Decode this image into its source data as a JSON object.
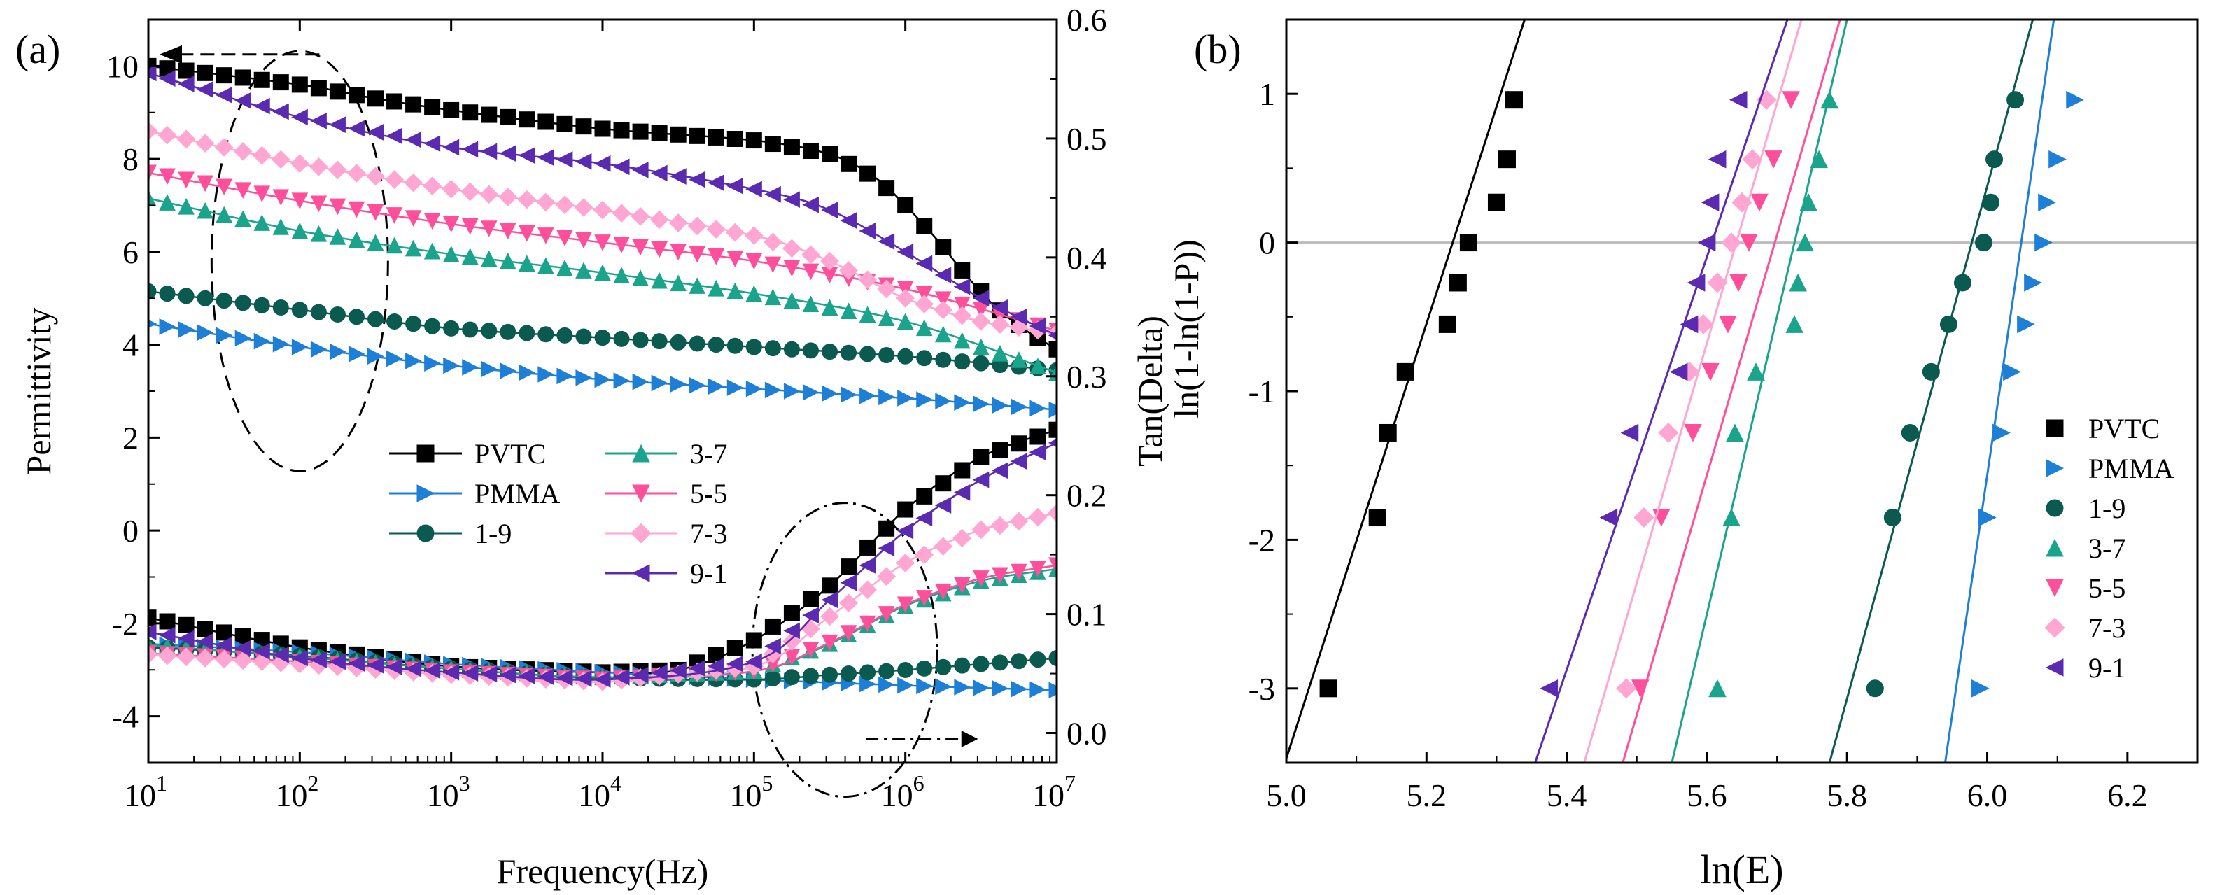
{
  "figure": {
    "panel_a_label": "(a)",
    "panel_b_label": "(b)"
  },
  "chart_data": [
    {
      "type": "line",
      "panel": "(a)",
      "xscale": "log",
      "xlabel": "Frequency(Hz)",
      "ylabel": "Permittivity",
      "ylabel_right": "Tan(Delta)",
      "xlim": [
        10,
        10000000
      ],
      "ylim": [
        -5,
        11
      ],
      "ylim_right": [
        -0.025,
        0.6
      ],
      "x_ticks": [
        {
          "value": 10,
          "base": "10",
          "exp": "1"
        },
        {
          "value": 100,
          "base": "10",
          "exp": "2"
        },
        {
          "value": 1000,
          "base": "10",
          "exp": "3"
        },
        {
          "value": 10000,
          "base": "10",
          "exp": "4"
        },
        {
          "value": 100000,
          "base": "10",
          "exp": "5"
        },
        {
          "value": 1000000,
          "base": "10",
          "exp": "6"
        },
        {
          "value": 10000000,
          "base": "10",
          "exp": "7"
        }
      ],
      "y_ticks": [
        {
          "value": -4,
          "label": "-4"
        },
        {
          "value": -2,
          "label": "-2"
        },
        {
          "value": 0,
          "label": "0"
        },
        {
          "value": 2,
          "label": "2"
        },
        {
          "value": 4,
          "label": "4"
        },
        {
          "value": 6,
          "label": "6"
        },
        {
          "value": 8,
          "label": "8"
        },
        {
          "value": 10,
          "label": "10"
        }
      ],
      "y_ticks_right": [
        {
          "value": 0.0,
          "label": "0.0"
        },
        {
          "value": 0.1,
          "label": "0.1"
        },
        {
          "value": 0.2,
          "label": "0.2"
        },
        {
          "value": 0.3,
          "label": "0.3"
        },
        {
          "value": 0.4,
          "label": "0.4"
        },
        {
          "value": 0.5,
          "label": "0.5"
        },
        {
          "value": 0.6,
          "label": "0.6"
        }
      ],
      "legend_position": "center",
      "annotations": [
        "dashed ellipse around permittivity curves near 10^2 Hz with arrow pointing to left axis",
        "dash-dot ellipse around tan delta curves near 10^5.6 Hz with arrow pointing to right axis"
      ],
      "series": [
        {
          "name": "PVTC",
          "marker": "square",
          "color": "#000000",
          "axis": "left",
          "role": "permittivity",
          "points": [
            [
              1,
              10.0
            ],
            [
              2,
              9.6
            ],
            [
              2.5,
              9.3
            ],
            [
              3,
              9.05
            ],
            [
              4,
              8.65
            ],
            [
              5,
              8.4
            ],
            [
              5.5,
              8.1
            ],
            [
              5.8,
              7.6
            ],
            [
              6.0,
              7.0
            ],
            [
              6.2,
              6.3
            ],
            [
              6.4,
              5.5
            ],
            [
              6.6,
              4.8
            ],
            [
              6.8,
              4.3
            ],
            [
              7,
              3.9
            ]
          ]
        },
        {
          "name": "PMMA",
          "marker": "triangle-right",
          "color": "#1e7fd6",
          "axis": "left",
          "role": "permittivity",
          "points": [
            [
              1,
              4.45
            ],
            [
              2,
              3.95
            ],
            [
              3,
              3.55
            ],
            [
              4,
              3.25
            ],
            [
              5,
              3.05
            ],
            [
              6,
              2.85
            ],
            [
              7,
              2.6
            ]
          ]
        },
        {
          "name": "1-9",
          "marker": "circle",
          "color": "#0a5a50",
          "axis": "left",
          "role": "permittivity",
          "points": [
            [
              1,
              5.15
            ],
            [
              2,
              4.75
            ],
            [
              3,
              4.35
            ],
            [
              4,
              4.15
            ],
            [
              5,
              3.95
            ],
            [
              6,
              3.75
            ],
            [
              7,
              3.45
            ]
          ]
        },
        {
          "name": "3-7",
          "marker": "triangle-up",
          "color": "#1aa48c",
          "axis": "left",
          "role": "permittivity",
          "points": [
            [
              1,
              7.15
            ],
            [
              2,
              6.45
            ],
            [
              3,
              5.95
            ],
            [
              4,
              5.55
            ],
            [
              5,
              5.1
            ],
            [
              6,
              4.5
            ],
            [
              7,
              3.4
            ]
          ]
        },
        {
          "name": "5-5",
          "marker": "triangle-down",
          "color": "#ff4f9a",
          "axis": "left",
          "role": "permittivity",
          "points": [
            [
              1,
              7.7
            ],
            [
              2,
              7.1
            ],
            [
              3,
              6.6
            ],
            [
              4,
              6.2
            ],
            [
              5,
              5.8
            ],
            [
              6,
              5.2
            ],
            [
              7,
              4.3
            ]
          ]
        },
        {
          "name": "7-3",
          "marker": "diamond",
          "color": "#ffa6d2",
          "axis": "left",
          "role": "permittivity",
          "points": [
            [
              1,
              8.6
            ],
            [
              2,
              7.9
            ],
            [
              3,
              7.35
            ],
            [
              4,
              6.9
            ],
            [
              5,
              6.35
            ],
            [
              5.5,
              5.8
            ],
            [
              6,
              5.0
            ],
            [
              6.5,
              4.5
            ],
            [
              7,
              4.25
            ]
          ]
        },
        {
          "name": "9-1",
          "marker": "triangle-left",
          "color": "#5a2bb0",
          "axis": "left",
          "role": "permittivity",
          "points": [
            [
              1,
              9.85
            ],
            [
              2,
              8.9
            ],
            [
              3,
              8.25
            ],
            [
              4,
              7.9
            ],
            [
              5,
              7.35
            ],
            [
              5.5,
              6.9
            ],
            [
              6,
              6.0
            ],
            [
              6.5,
              5.0
            ],
            [
              7,
              4.2
            ]
          ]
        },
        {
          "name": "PVTC",
          "marker": "square",
          "color": "#000000",
          "axis": "right",
          "role": "tan-delta",
          "points": [
            [
              1,
              0.097
            ],
            [
              2,
              0.072
            ],
            [
              3,
              0.056
            ],
            [
              4,
              0.051
            ],
            [
              4.5,
              0.053
            ],
            [
              5,
              0.078
            ],
            [
              5.5,
              0.124
            ],
            [
              6,
              0.188
            ],
            [
              6.5,
              0.232
            ],
            [
              7,
              0.255
            ]
          ]
        },
        {
          "name": "PMMA",
          "marker": "triangle-right",
          "color": "#1e7fd6",
          "axis": "right",
          "role": "tan-delta",
          "points": [
            [
              1,
              0.075
            ],
            [
              2,
              0.068
            ],
            [
              3,
              0.058
            ],
            [
              4,
              0.051
            ],
            [
              5,
              0.045
            ],
            [
              6,
              0.04
            ],
            [
              7,
              0.036
            ]
          ]
        },
        {
          "name": "1-9",
          "marker": "circle",
          "color": "#0a5a50",
          "axis": "right",
          "role": "tan-delta",
          "points": [
            [
              1,
              0.072
            ],
            [
              2,
              0.065
            ],
            [
              3,
              0.054
            ],
            [
              4,
              0.046
            ],
            [
              5,
              0.045
            ],
            [
              5.5,
              0.049
            ],
            [
              6,
              0.053
            ],
            [
              6.5,
              0.058
            ],
            [
              7,
              0.063
            ]
          ]
        },
        {
          "name": "3-7",
          "marker": "triangle-up",
          "color": "#1aa48c",
          "axis": "right",
          "role": "tan-delta",
          "points": [
            [
              1,
              0.074
            ],
            [
              2,
              0.064
            ],
            [
              3,
              0.054
            ],
            [
              4,
              0.047
            ],
            [
              5,
              0.052
            ],
            [
              5.5,
              0.075
            ],
            [
              6,
              0.107
            ],
            [
              6.5,
              0.128
            ],
            [
              7,
              0.138
            ]
          ]
        },
        {
          "name": "5-5",
          "marker": "triangle-down",
          "color": "#ff4f9a",
          "axis": "right",
          "role": "tan-delta",
          "points": [
            [
              1,
              0.067
            ],
            [
              2,
              0.06
            ],
            [
              3,
              0.051
            ],
            [
              4,
              0.045
            ],
            [
              5,
              0.052
            ],
            [
              5.5,
              0.076
            ],
            [
              6,
              0.108
            ],
            [
              6.5,
              0.13
            ],
            [
              7,
              0.141
            ]
          ]
        },
        {
          "name": "7-3",
          "marker": "diamond",
          "color": "#ffa6d2",
          "axis": "right",
          "role": "tan-delta",
          "points": [
            [
              1,
              0.066
            ],
            [
              2,
              0.058
            ],
            [
              3,
              0.049
            ],
            [
              4,
              0.043
            ],
            [
              5,
              0.056
            ],
            [
              5.5,
              0.098
            ],
            [
              6,
              0.143
            ],
            [
              6.5,
              0.171
            ],
            [
              7,
              0.185
            ]
          ]
        },
        {
          "name": "9-1",
          "marker": "triangle-left",
          "color": "#5a2bb0",
          "axis": "right",
          "role": "tan-delta",
          "points": [
            [
              1,
              0.085
            ],
            [
              2,
              0.063
            ],
            [
              3,
              0.051
            ],
            [
              4,
              0.045
            ],
            [
              5,
              0.06
            ],
            [
              5.5,
              0.112
            ],
            [
              6,
              0.17
            ],
            [
              6.5,
              0.213
            ],
            [
              7,
              0.244
            ]
          ]
        }
      ]
    },
    {
      "type": "scatter",
      "panel": "(b)",
      "xlabel": "ln(E)",
      "ylabel": "ln(1-ln(1-P))",
      "xlim": [
        5.0,
        6.3
      ],
      "ylim": [
        -3.5,
        1.5
      ],
      "x_ticks": [
        {
          "value": 5.0,
          "label": "5.0"
        },
        {
          "value": 5.2,
          "label": "5.2"
        },
        {
          "value": 5.4,
          "label": "5.4"
        },
        {
          "value": 5.6,
          "label": "5.6"
        },
        {
          "value": 5.8,
          "label": "5.8"
        },
        {
          "value": 6.0,
          "label": "6.0"
        },
        {
          "value": 6.2,
          "label": "6.2"
        }
      ],
      "y_ticks": [
        {
          "value": -3,
          "label": "-3"
        },
        {
          "value": -2,
          "label": "-2"
        },
        {
          "value": -1,
          "label": "-1"
        },
        {
          "value": 0,
          "label": "0"
        },
        {
          "value": 1,
          "label": "1"
        }
      ],
      "reference_line_y": 0,
      "legend_position": "bottom-right",
      "y_levels": [
        -3.0,
        -1.85,
        -1.28,
        -0.87,
        -0.55,
        -0.27,
        0.0,
        0.27,
        0.56,
        0.96
      ],
      "series": [
        {
          "name": "PVTC",
          "marker": "square",
          "color": "#000000",
          "x": [
            5.06,
            5.13,
            5.145,
            5.17,
            5.23,
            5.245,
            5.26,
            5.3,
            5.315,
            5.325
          ],
          "fit": [
            [
              5.0,
              -3.47
            ],
            [
              5.34,
              1.5
            ]
          ]
        },
        {
          "name": "PMMA",
          "marker": "triangle-right",
          "color": "#1e7fd6",
          "x": [
            5.99,
            6.0,
            6.02,
            6.035,
            6.055,
            6.065,
            6.08,
            6.085,
            6.1,
            6.125
          ],
          "fit": [
            [
              5.94,
              -3.5
            ],
            [
              6.095,
              1.5
            ]
          ]
        },
        {
          "name": "1-9",
          "marker": "circle",
          "color": "#0a5a50",
          "x": [
            5.84,
            5.865,
            5.89,
            5.92,
            5.945,
            5.965,
            5.995,
            6.005,
            6.01,
            6.04
          ],
          "fit": [
            [
              5.775,
              -3.5
            ],
            [
              6.065,
              1.5
            ]
          ]
        },
        {
          "name": "3-7",
          "marker": "triangle-up",
          "color": "#1aa48c",
          "x": [
            5.615,
            5.635,
            5.64,
            5.67,
            5.725,
            5.73,
            5.74,
            5.745,
            5.76,
            5.775
          ],
          "fit": [
            [
              5.55,
              -3.5
            ],
            [
              5.8,
              1.5
            ]
          ]
        },
        {
          "name": "5-5",
          "marker": "triangle-down",
          "color": "#ff4f9a",
          "x": [
            5.505,
            5.535,
            5.58,
            5.605,
            5.63,
            5.645,
            5.66,
            5.675,
            5.695,
            5.72
          ],
          "fit": [
            [
              5.48,
              -3.5
            ],
            [
              5.79,
              1.5
            ]
          ]
        },
        {
          "name": "7-3",
          "marker": "diamond",
          "color": "#ffa6d2",
          "x": [
            5.485,
            5.51,
            5.545,
            5.575,
            5.595,
            5.615,
            5.635,
            5.65,
            5.665,
            5.685
          ],
          "fit": [
            [
              5.425,
              -3.5
            ],
            [
              5.735,
              1.5
            ]
          ]
        },
        {
          "name": "9-1",
          "marker": "triangle-left",
          "color": "#5a2bb0",
          "x": [
            5.375,
            5.46,
            5.49,
            5.56,
            5.575,
            5.585,
            5.6,
            5.605,
            5.615,
            5.645
          ],
          "fit": [
            [
              5.355,
              -3.5
            ],
            [
              5.715,
              1.5
            ]
          ]
        }
      ]
    }
  ]
}
